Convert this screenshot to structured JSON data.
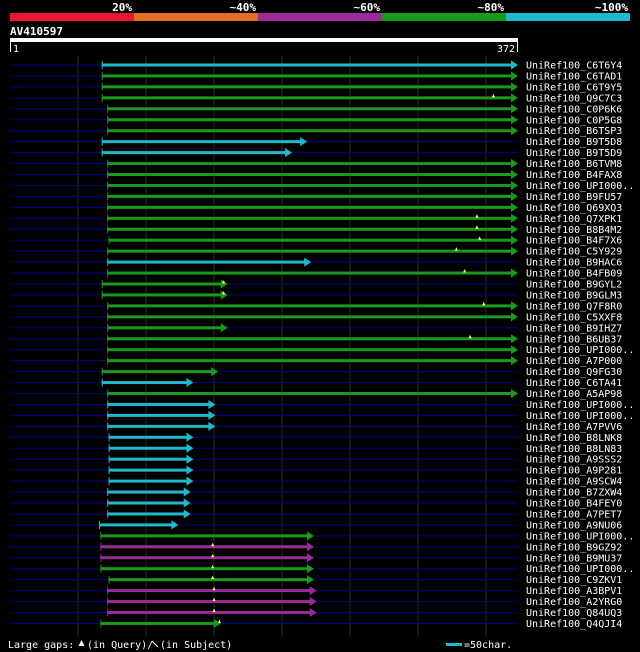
{
  "colors": {
    "background": "#000000",
    "bar_red": "#e8162f",
    "bar_orange": "#e07020",
    "bar_purple": "#9a2a9a",
    "bar_green": "#1a9a1a",
    "bar_cyan": "#22b8cc",
    "ruler": "#ffffff",
    "grid": "#2a2a2a",
    "query_line": "#000088",
    "text": "#ffffff",
    "gap_marker": "#ffff66"
  },
  "chart_data": {
    "type": "alignment-overview",
    "identity_legend": [
      {
        "label": "20%",
        "color": "#e8162f"
      },
      {
        "label": "~40%",
        "color": "#e07020"
      },
      {
        "label": "~60%",
        "color": "#9a2a9a"
      },
      {
        "label": "~80%",
        "color": "#1a9a1a"
      },
      {
        "label": "~100%",
        "color": "#22b8cc"
      }
    ],
    "query": {
      "name": "AV410597",
      "start": "1",
      "end": "372",
      "length": 372
    },
    "hits": [
      {
        "name": "UniRef100_C6T6Y4",
        "start": 68,
        "end": 372,
        "color": "cyan",
        "gaps": []
      },
      {
        "name": "UniRef100_C6TAD1",
        "start": 68,
        "end": 372,
        "color": "green",
        "gaps": []
      },
      {
        "name": "UniRef100_C6T9Y5",
        "start": 68,
        "end": 372,
        "color": "green",
        "gaps": []
      },
      {
        "name": "UniRef100_Q9C7C3",
        "start": 68,
        "end": 372,
        "color": "green",
        "gaps": [
          354
        ]
      },
      {
        "name": "UniRef100_C0P6K6",
        "start": 72,
        "end": 372,
        "color": "green",
        "gaps": []
      },
      {
        "name": "UniRef100_C0P5G8",
        "start": 72,
        "end": 372,
        "color": "green",
        "gaps": []
      },
      {
        "name": "UniRef100_B6TSP3",
        "start": 72,
        "end": 372,
        "color": "green",
        "gaps": []
      },
      {
        "name": "UniRef100_B9T5D8",
        "start": 68,
        "end": 218,
        "color": "cyan",
        "gaps": []
      },
      {
        "name": "UniRef100_B9T5D9",
        "start": 68,
        "end": 207,
        "color": "cyan",
        "gaps": []
      },
      {
        "name": "UniRef100_B6TVM8",
        "start": 72,
        "end": 372,
        "color": "green",
        "gaps": []
      },
      {
        "name": "UniRef100_B4FAX8",
        "start": 72,
        "end": 372,
        "color": "green",
        "gaps": []
      },
      {
        "name": "UniRef100_UPI000..",
        "start": 72,
        "end": 372,
        "color": "green",
        "gaps": []
      },
      {
        "name": "UniRef100_B9FU57",
        "start": 72,
        "end": 372,
        "color": "green",
        "gaps": []
      },
      {
        "name": "UniRef100_Q69XQ3",
        "start": 72,
        "end": 372,
        "color": "green",
        "gaps": []
      },
      {
        "name": "UniRef100_Q7XPK1",
        "start": 72,
        "end": 372,
        "color": "green",
        "gaps": [
          342
        ]
      },
      {
        "name": "UniRef100_B8B4M2",
        "start": 72,
        "end": 372,
        "color": "green",
        "gaps": [
          342
        ]
      },
      {
        "name": "UniRef100_B4F7X6",
        "start": 73,
        "end": 372,
        "color": "green",
        "gaps": [
          344
        ]
      },
      {
        "name": "UniRef100_C5Y929",
        "start": 72,
        "end": 372,
        "color": "green",
        "gaps": [
          327
        ]
      },
      {
        "name": "UniRef100_B9HAC6",
        "start": 72,
        "end": 221,
        "color": "cyan",
        "gaps": []
      },
      {
        "name": "UniRef100_B4FB09",
        "start": 72,
        "end": 372,
        "color": "green",
        "gaps": [
          333
        ]
      },
      {
        "name": "UniRef100_B9GYL2",
        "start": 68,
        "end": 160,
        "color": "green",
        "gaps": [
          157
        ]
      },
      {
        "name": "UniRef100_B9GLM3",
        "start": 68,
        "end": 160,
        "color": "green",
        "gaps": [
          157
        ]
      },
      {
        "name": "UniRef100_Q7F8R0",
        "start": 72,
        "end": 372,
        "color": "green",
        "gaps": [
          347
        ]
      },
      {
        "name": "UniRef100_C5XXF8",
        "start": 72,
        "end": 372,
        "color": "green",
        "gaps": []
      },
      {
        "name": "UniRef100_B9IHZ7",
        "start": 72,
        "end": 160,
        "color": "green",
        "gaps": []
      },
      {
        "name": "UniRef100_B6UB37",
        "start": 72,
        "end": 372,
        "color": "green",
        "gaps": [
          337
        ]
      },
      {
        "name": "UniRef100_UPI000..",
        "start": 72,
        "end": 372,
        "color": "green",
        "gaps": []
      },
      {
        "name": "UniRef100_A7P000",
        "start": 72,
        "end": 372,
        "color": "green",
        "gaps": []
      },
      {
        "name": "UniRef100_Q9FG30",
        "start": 68,
        "end": 153,
        "color": "green",
        "gaps": []
      },
      {
        "name": "UniRef100_C6TA41",
        "start": 68,
        "end": 135,
        "color": "cyan",
        "gaps": []
      },
      {
        "name": "UniRef100_A5AP98",
        "start": 72,
        "end": 372,
        "color": "green",
        "gaps": []
      },
      {
        "name": "UniRef100_UPI000..",
        "start": 72,
        "end": 151,
        "color": "cyan",
        "gaps": []
      },
      {
        "name": "UniRef100_UPI000..",
        "start": 72,
        "end": 151,
        "color": "cyan",
        "gaps": []
      },
      {
        "name": "UniRef100_A7PVV6",
        "start": 72,
        "end": 151,
        "color": "cyan",
        "gaps": []
      },
      {
        "name": "UniRef100_B8LNK8",
        "start": 73,
        "end": 135,
        "color": "cyan",
        "gaps": []
      },
      {
        "name": "UniRef100_B8LN83",
        "start": 73,
        "end": 135,
        "color": "cyan",
        "gaps": []
      },
      {
        "name": "UniRef100_A9SSS2",
        "start": 73,
        "end": 135,
        "color": "cyan",
        "gaps": []
      },
      {
        "name": "UniRef100_A9P281",
        "start": 73,
        "end": 135,
        "color": "cyan",
        "gaps": []
      },
      {
        "name": "UniRef100_A9SCW4",
        "start": 73,
        "end": 135,
        "color": "cyan",
        "gaps": []
      },
      {
        "name": "UniRef100_B7ZXW4",
        "start": 72,
        "end": 133,
        "color": "cyan",
        "gaps": []
      },
      {
        "name": "UniRef100_B4FEY0",
        "start": 72,
        "end": 133,
        "color": "cyan",
        "gaps": []
      },
      {
        "name": "UniRef100_A7PET7",
        "start": 72,
        "end": 133,
        "color": "cyan",
        "gaps": []
      },
      {
        "name": "UniRef100_A9NU06",
        "start": 66,
        "end": 124,
        "color": "cyan",
        "gaps": []
      },
      {
        "name": "UniRef100_UPI000..",
        "start": 67,
        "end": 223,
        "color": "green",
        "gaps": []
      },
      {
        "name": "UniRef100_B9GZ92",
        "start": 67,
        "end": 223,
        "color": "purple",
        "gaps": [
          149
        ]
      },
      {
        "name": "UniRef100_B9MU37",
        "start": 67,
        "end": 223,
        "color": "purple",
        "gaps": [
          149
        ]
      },
      {
        "name": "UniRef100_UPI000..",
        "start": 67,
        "end": 223,
        "color": "green",
        "gaps": [
          149
        ]
      },
      {
        "name": "UniRef100_C9ZKV1",
        "start": 73,
        "end": 223,
        "color": "green",
        "gaps": [
          149
        ]
      },
      {
        "name": "UniRef100_A3BPV1",
        "start": 72,
        "end": 225,
        "color": "purple",
        "gaps": [
          150
        ]
      },
      {
        "name": "UniRef100_A2YRG0",
        "start": 72,
        "end": 225,
        "color": "purple",
        "gaps": [
          150
        ]
      },
      {
        "name": "UniRef100_Q84UQ3",
        "start": 72,
        "end": 225,
        "color": "purple",
        "gaps": [
          150
        ]
      },
      {
        "name": "UniRef100_Q4QJI4",
        "start": 67,
        "end": 155,
        "color": "green",
        "gaps": [
          154
        ]
      }
    ]
  },
  "footer": {
    "large_gaps": "Large gaps:",
    "in_query": "(in Query)/",
    "in_subject": "(in Subject)",
    "scale": "=50char."
  }
}
